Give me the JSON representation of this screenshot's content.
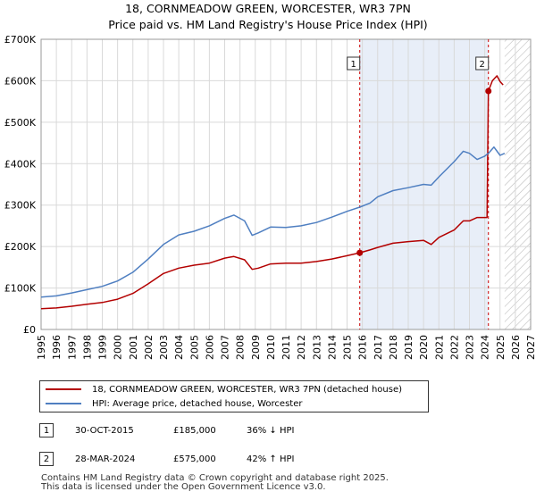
{
  "colors": {
    "price": "#b30000",
    "hpi": "#4f7fc1",
    "band": "#e8eef8",
    "grid": "#d9d9d9",
    "marker_line": "#cc0000"
  },
  "chart_data": {
    "type": "line",
    "title": "18, CORNMEADOW GREEN, WORCESTER, WR3 7PN",
    "subtitle": "Price paid vs. HM Land Registry's House Price Index (HPI)",
    "xlim": [
      1995,
      2027
    ],
    "ylim": [
      0,
      700000
    ],
    "x_ticks": [
      1995,
      1996,
      1997,
      1998,
      1999,
      2000,
      2001,
      2002,
      2003,
      2004,
      2005,
      2006,
      2007,
      2008,
      2009,
      2010,
      2011,
      2012,
      2013,
      2014,
      2015,
      2016,
      2017,
      2018,
      2019,
      2020,
      2021,
      2022,
      2023,
      2024,
      2025,
      2026,
      2027
    ],
    "y_ticks": [
      0,
      100000,
      200000,
      300000,
      400000,
      500000,
      600000,
      700000
    ],
    "y_tick_labels": [
      "£0",
      "£100K",
      "£200K",
      "£300K",
      "£400K",
      "£500K",
      "£600K",
      "£700K"
    ],
    "grid": true,
    "shaded_period": [
      2015.83,
      2024.24
    ],
    "future_hatch_from": 2025.3,
    "series": [
      {
        "name": "18, CORNMEADOW GREEN, WORCESTER, WR3 7PN (detached house)",
        "color_key": "price",
        "x": [
          1995,
          1996,
          1997,
          1998,
          1999,
          2000,
          2001,
          2002,
          2003,
          2004,
          2005,
          2006,
          2007,
          2007.6,
          2008.3,
          2008.8,
          2009.2,
          2010,
          2011,
          2012,
          2013,
          2014,
          2015,
          2015.83,
          2016.5,
          2017,
          2018,
          2019,
          2020,
          2020.5,
          2021,
          2022,
          2022.6,
          2023,
          2023.5,
          2024.15,
          2024.24,
          2024.5,
          2024.8,
          2025,
          2025.2
        ],
        "y": [
          50000,
          52000,
          56000,
          61000,
          65000,
          73000,
          87000,
          110000,
          135000,
          148000,
          155000,
          160000,
          172000,
          176000,
          168000,
          145000,
          148000,
          158000,
          160000,
          160000,
          164000,
          170000,
          178000,
          185000,
          192000,
          198000,
          208000,
          212000,
          215000,
          205000,
          222000,
          240000,
          262000,
          262000,
          270000,
          270000,
          575000,
          600000,
          612000,
          598000,
          590000
        ]
      },
      {
        "name": "HPI: Average price, detached house, Worcester",
        "color_key": "hpi",
        "x": [
          1995,
          1996,
          1997,
          1998,
          1999,
          2000,
          2001,
          2002,
          2003,
          2004,
          2005,
          2006,
          2007,
          2007.6,
          2008.3,
          2008.8,
          2009.2,
          2010,
          2011,
          2012,
          2013,
          2014,
          2015,
          2015.83,
          2016.5,
          2017,
          2018,
          2019,
          2020,
          2020.5,
          2021,
          2022,
          2022.6,
          2023,
          2023.5,
          2024,
          2024.24,
          2024.6,
          2025,
          2025.3
        ],
        "y": [
          78000,
          81000,
          88000,
          96000,
          104000,
          117000,
          138000,
          170000,
          205000,
          228000,
          237000,
          250000,
          268000,
          276000,
          262000,
          227000,
          233000,
          247000,
          246000,
          250000,
          258000,
          271000,
          285000,
          295000,
          305000,
          320000,
          335000,
          342000,
          350000,
          348000,
          368000,
          405000,
          430000,
          425000,
          410000,
          418000,
          425000,
          440000,
          420000,
          425000
        ]
      }
    ],
    "annotations": [
      {
        "label": "1",
        "x": 2015.83,
        "y": 185000
      },
      {
        "label": "2",
        "x": 2024.24,
        "y": 575000
      }
    ]
  },
  "legend": {
    "price_label": "18, CORNMEADOW GREEN, WORCESTER, WR3 7PN (detached house)",
    "hpi_label": "HPI: Average price, detached house, Worcester"
  },
  "transactions": [
    {
      "marker": "1",
      "date": "30-OCT-2015",
      "price": "£185,000",
      "hpi_change": "36% ↓ HPI"
    },
    {
      "marker": "2",
      "date": "28-MAR-2024",
      "price": "£575,000",
      "hpi_change": "42% ↑ HPI"
    }
  ],
  "footer": {
    "line1": "Contains HM Land Registry data © Crown copyright and database right 2025.",
    "line2": "This data is licensed under the Open Government Licence v3.0."
  }
}
